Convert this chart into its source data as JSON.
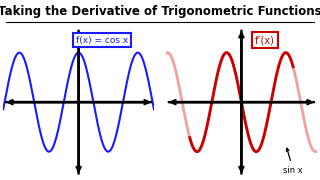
{
  "title": "Taking the Derivative of Trigonometric Functions",
  "title_fontsize": 8.5,
  "title_fontweight": "bold",
  "bg_color": "#ffffff",
  "left_label": "f(x) = cos x",
  "left_label_color": "#1a1aff",
  "right_label": "f’(x)",
  "right_label_color": "#cc0000",
  "annotation": "sin x",
  "cos_color": "#1a1aff",
  "sin_dark_color": "#cc0000",
  "sin_light_color": "#f0a0a0",
  "axis_color": "#000000",
  "xlim": [
    -8.0,
    8.0
  ],
  "ylim": [
    -1.5,
    1.5
  ],
  "freq": 2.0
}
